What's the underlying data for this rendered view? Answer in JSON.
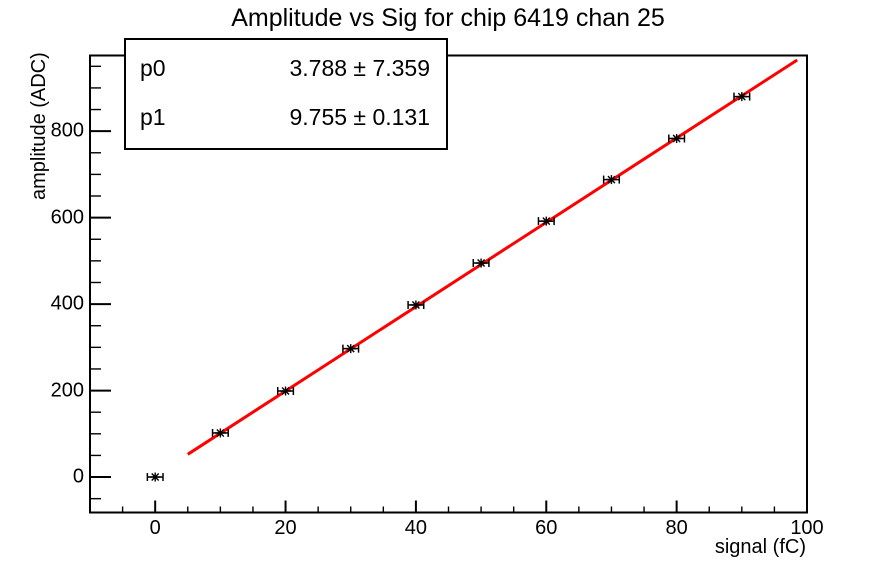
{
  "title": "Amplitude vs Sig for chip 6419 chan 25",
  "fit": {
    "params": [
      {
        "name": "p0",
        "value": "3.788 ± 7.359"
      },
      {
        "name": "p1",
        "value": "9.755 ± 0.131"
      }
    ]
  },
  "colors": {
    "fit_line": "#ff0000",
    "marker": "#000000",
    "frame": "#000000",
    "background": "#ffffff"
  },
  "chart_data": {
    "type": "scatter",
    "title": "Amplitude vs Sig for chip 6419 chan 25",
    "xlabel": "signal (fC)",
    "ylabel": "amplitude (ADC)",
    "x": [
      0,
      10,
      20,
      30,
      40,
      50,
      60,
      70,
      80,
      90
    ],
    "y": [
      0,
      102,
      199,
      297,
      398,
      495,
      592,
      688,
      783,
      880
    ],
    "xerr": 1.2,
    "xlim": [
      -10,
      100
    ],
    "ylim": [
      -82,
      975
    ],
    "x_major_ticks": [
      0,
      20,
      40,
      60,
      80,
      100
    ],
    "x_minor_step": 5,
    "y_major_ticks": [
      0,
      200,
      400,
      600,
      800
    ],
    "y_minor_step": 50,
    "grid": false,
    "legend": false,
    "marker": "asterisk",
    "marker_color": "#000000",
    "fit": {
      "p0": 3.788,
      "p0_err": 7.359,
      "p1": 9.755,
      "p1_err": 0.131,
      "line_color": "#ff0000",
      "line_x_range": [
        5,
        98.5
      ]
    }
  }
}
